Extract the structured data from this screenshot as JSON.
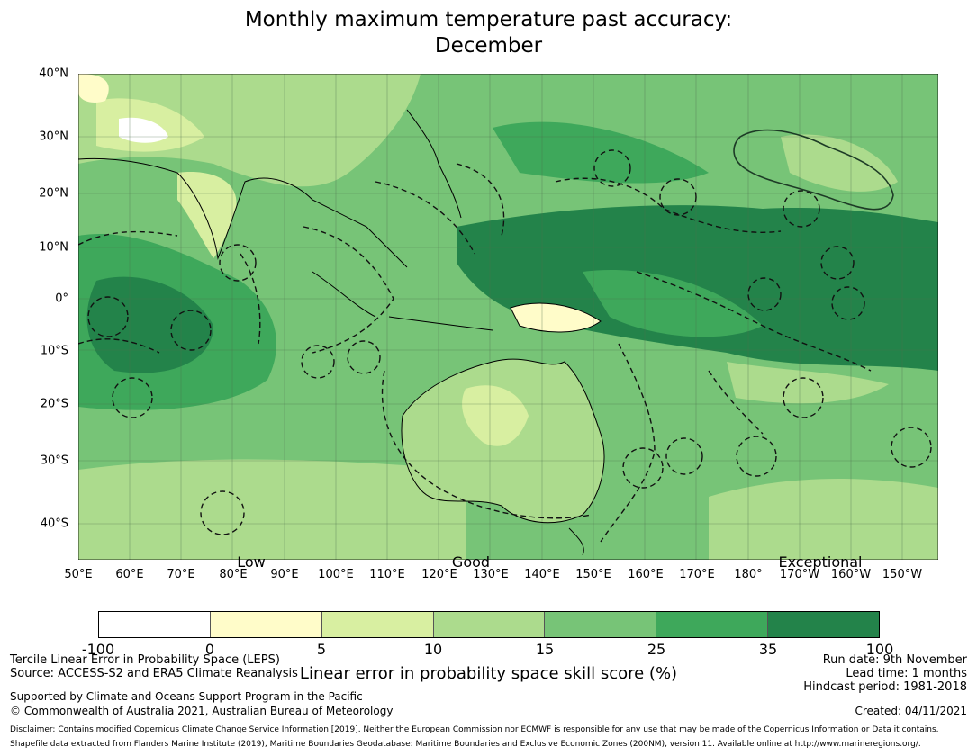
{
  "title": {
    "line1": "Monthly maximum temperature past accuracy:",
    "line2": "December"
  },
  "map": {
    "lat_labels": [
      "40°N",
      "30°N",
      "20°N",
      "10°N",
      "0°",
      "10°S",
      "20°S",
      "30°S",
      "40°S"
    ],
    "lon_labels": [
      "50°E",
      "60°E",
      "70°E",
      "80°E",
      "90°E",
      "100°E",
      "110°E",
      "120°E",
      "130°E",
      "140°E",
      "150°E",
      "160°E",
      "170°E",
      "180°",
      "170°W",
      "160°W",
      "150°W"
    ],
    "category_labels": {
      "low": "Low",
      "good": "Good",
      "exceptional": "Exceptional"
    }
  },
  "colorbar": {
    "ticks": [
      "-100",
      "0",
      "5",
      "10",
      "15",
      "25",
      "35",
      "100"
    ],
    "colors": [
      "#ffffff",
      "#fffcc9",
      "#d8efa1",
      "#acdb8d",
      "#77c477",
      "#3ea85b",
      "#23834a"
    ],
    "label": "Linear error in probability space skill score (%)"
  },
  "footer": {
    "left1": "Tercile Linear Error in Probability Space (LEPS)",
    "left2": "Source: ACCESS-S2 and ERA5 Climate Reanalysis",
    "left3": "Supported by Climate and Oceans Support Program in the Pacific",
    "left4": "© Commonwealth of Australia 2021, Australian Bureau of Meteorology",
    "right1": "Run date: 9th November",
    "right2": "Lead time: 1 months",
    "right3": "Hindcast period: 1981-2018",
    "created": "Created: 04/11/2021",
    "disclaimer1": "Disclaimer: Contains modified Copernicus Climate Change Service Information [2019]. Neither the European Commission nor ECMWF is responsible for any use that may be made of the Copernicus Information or Data it contains.",
    "disclaimer2": "Shapefile data extracted from Flanders Marine Institute (2019), Maritime Boundaries Geodatabase: Maritime Boundaries and Exclusive Economic Zones (200NM), version 11. Available online at http://www.marineregions.org/."
  }
}
